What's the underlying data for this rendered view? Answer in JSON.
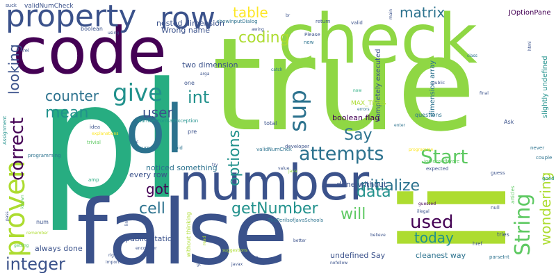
{
  "palette": {
    "dark_purple": "#440154",
    "indigo": "#3b528b",
    "slate_blue": "#2c728e",
    "teal": "#21918c",
    "sea_green": "#27ad81",
    "green": "#5ec962",
    "lime": "#addc30",
    "yellow": "#fde725",
    "light_green": "#8fd744"
  },
  "words": [
    "pl",
    "true",
    "li",
    "false",
    "check",
    "code",
    "number",
    "ol",
    "proven",
    "property",
    "row",
    "String",
    "Start",
    "attempts",
    "give",
    "correct",
    "sup",
    "integer",
    "getNumber",
    "Initialize",
    "used",
    "matrix",
    "table",
    "coding",
    "mean",
    "counter",
    "user",
    "int",
    "looking",
    "options",
    "Say",
    "data",
    "will",
    "cell",
    "got",
    "today",
    "wondering",
    "boolean flag",
    "cleanest way",
    "undefined Say",
    "done without",
    "two dimension",
    "always done",
    "public static",
    "noticed something",
    "every row",
    "nested dimension",
    "Wrong name",
    "completely executed",
    "dimension array",
    "slightly undefined",
    "JOptionPane",
    "MAX_TRIES",
    "validNumCheck",
    "showInputDialog",
    "NumberFormatException",
    "ThePerilsofJavaSchools",
    "without thinking",
    "lt",
    "amp",
    "num",
    "pre",
    "one",
    "total",
    "questions",
    "Ask",
    "expected",
    "null",
    "tries",
    "parseInt",
    "href",
    "programming",
    "developer",
    "Please",
    "new",
    "return",
    "valid",
    "boolean",
    "suck",
    "rel",
    "idea",
    "explanations",
    "trivial",
    "Assignment",
    "course",
    "void",
    "validNumChek",
    "joelonsoftware",
    "programme",
    "guess",
    "articles",
    "good",
    "never",
    "couple",
    "final",
    "public",
    "errors",
    "enter",
    "illegal",
    "guessed",
    "remember",
    "getting",
    "believe",
    "suggestions",
    "encounter",
    "right",
    "import",
    "Parse",
    "javax",
    "nofollow",
    "better",
    "read",
    "using",
    "main",
    "html",
    "class",
    "catch",
    "arga",
    "awing",
    "br",
    "line",
    "pass",
    "known",
    "gt",
    "java",
    "value",
    "now",
    "try",
    "c"
  ]
}
